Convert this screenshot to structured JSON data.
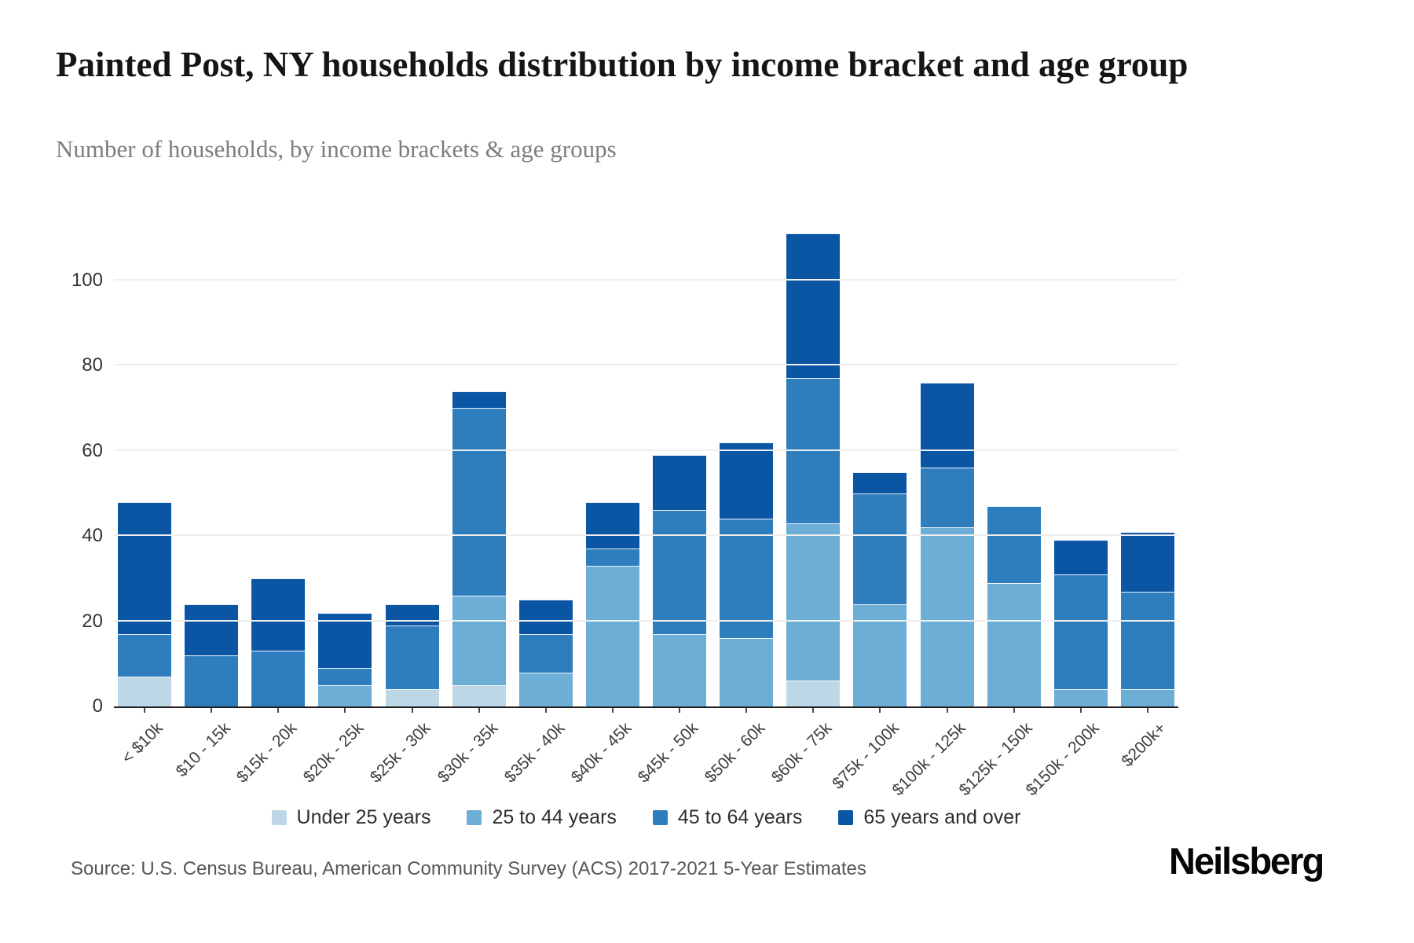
{
  "header": {
    "title": "Painted Post, NY households distribution by income bracket and age group",
    "subtitle": "Number of households, by income brackets & age groups"
  },
  "chart_data": {
    "type": "bar",
    "stacked": true,
    "categories": [
      "< $10k",
      "$10 - 15k",
      "$15k - 20k",
      "$20k - 25k",
      "$25k - 30k",
      "$30k - 35k",
      "$35k - 40k",
      "$40k - 45k",
      "$45k - 50k",
      "$50k - 60k",
      "$60k - 75k",
      "$75k - 100k",
      "$100k - 125k",
      "$125k - 150k",
      "$150k - 200k",
      "$200k+"
    ],
    "series": [
      {
        "name": "Under 25 years",
        "color": "#bdd7e7",
        "values": [
          7,
          0,
          0,
          0,
          4,
          5,
          0,
          0,
          0,
          0,
          6,
          0,
          0,
          0,
          0,
          0
        ]
      },
      {
        "name": "25 to 44 years",
        "color": "#6caed6",
        "values": [
          0,
          0,
          0,
          5,
          0,
          21,
          8,
          33,
          17,
          16,
          37,
          24,
          42,
          29,
          4,
          4
        ]
      },
      {
        "name": "45 to 64 years",
        "color": "#2e7ebd",
        "values": [
          10,
          12,
          13,
          4,
          15,
          44,
          9,
          4,
          29,
          28,
          34,
          26,
          14,
          18,
          27,
          23
        ]
      },
      {
        "name": "65 years and over",
        "color": "#0b56a4",
        "values": [
          31,
          12,
          17,
          13,
          5,
          4,
          8,
          11,
          13,
          18,
          34,
          5,
          20,
          0,
          8,
          14
        ]
      }
    ],
    "totals": [
      48,
      24,
      30,
      22,
      24,
      74,
      25,
      48,
      59,
      62,
      111,
      55,
      76,
      47,
      39,
      41
    ],
    "title": "Painted Post, NY households distribution by income bracket and age group",
    "xlabel": "",
    "ylabel": "",
    "ylim": [
      0,
      112
    ],
    "yticks": [
      0,
      20,
      40,
      60,
      80,
      100
    ],
    "grid": true,
    "legend_position": "bottom"
  },
  "footer": {
    "source": "Source: U.S. Census Bureau, American Community Survey (ACS) 2017-2021 5-Year Estimates",
    "logo": "Neilsberg"
  }
}
